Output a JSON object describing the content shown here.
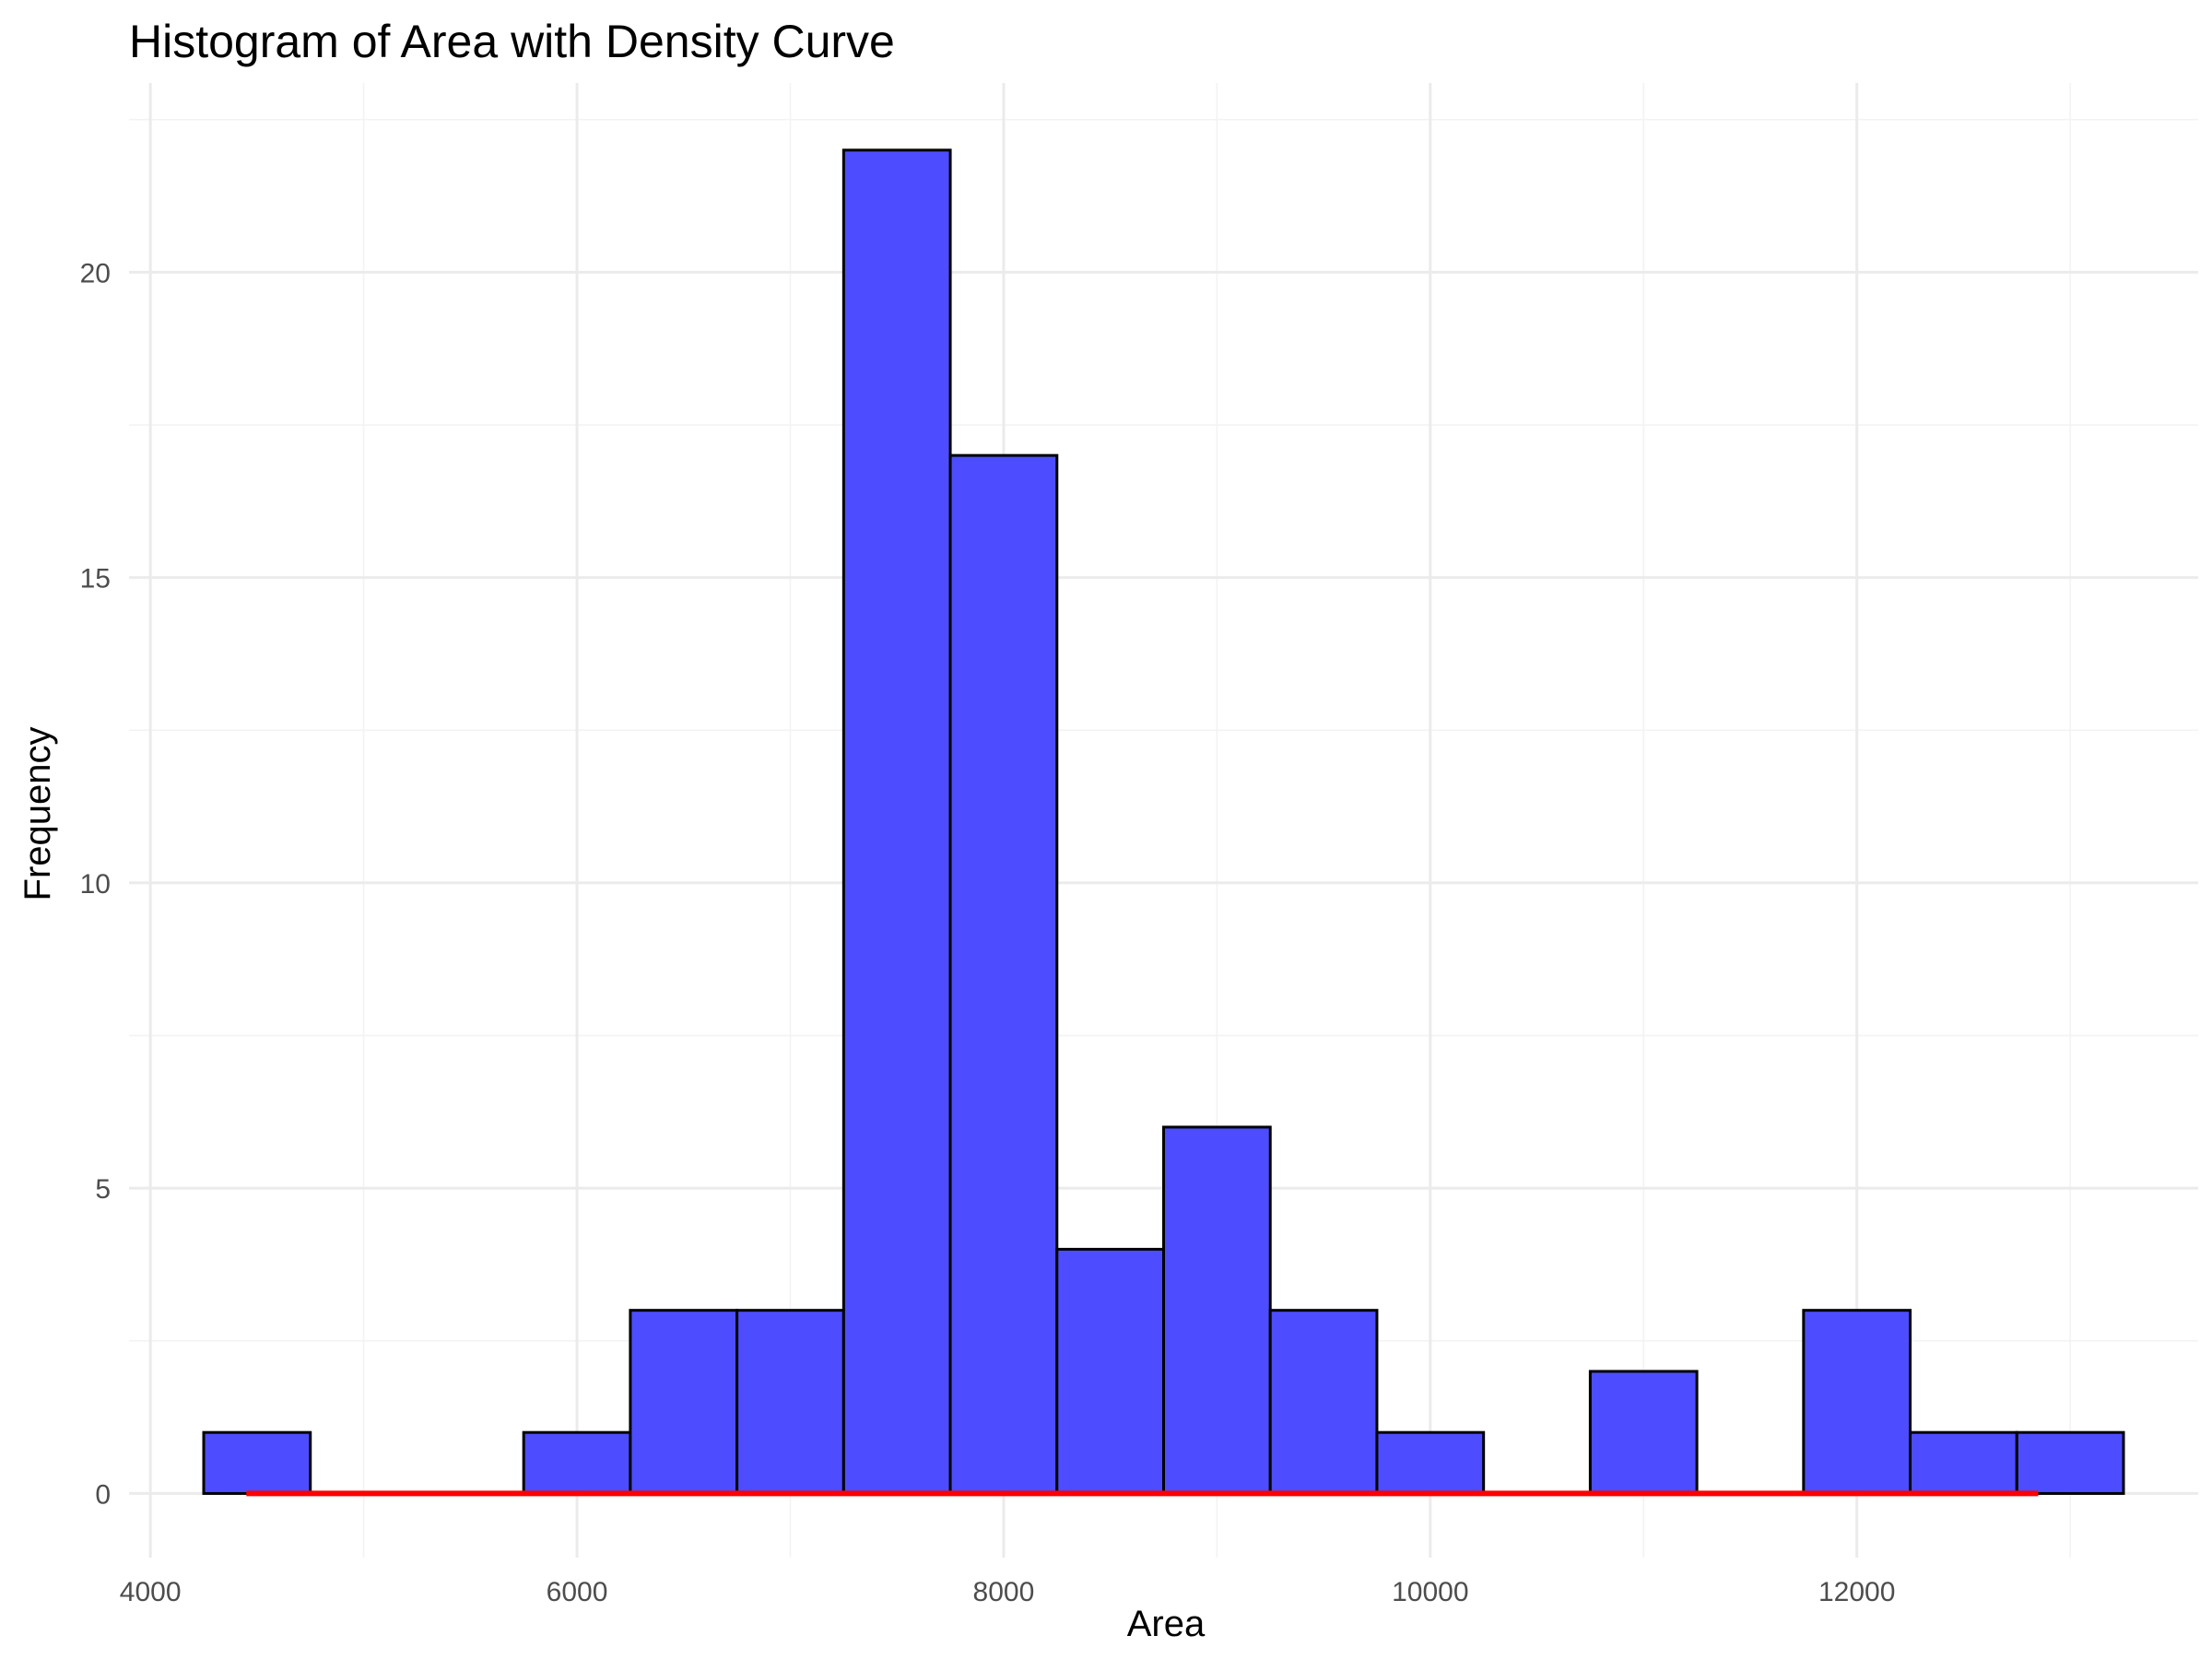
{
  "chart_data": {
    "type": "bar",
    "title": "Histogram of Area with Density Curve",
    "xlabel": "Area",
    "ylabel": "Frequency",
    "xlim": [
      3900,
      13600
    ],
    "ylim": [
      -1.05,
      23.1
    ],
    "x_ticks": [
      4000,
      6000,
      8000,
      10000,
      12000
    ],
    "y_ticks": [
      0,
      5,
      10,
      15,
      20
    ],
    "grid": true,
    "legend": "none",
    "bin_width": 500,
    "bins": [
      {
        "start": 4250,
        "end": 4750,
        "count": 1
      },
      {
        "start": 4750,
        "end": 5250,
        "count": 0
      },
      {
        "start": 5250,
        "end": 5750,
        "count": 0
      },
      {
        "start": 5750,
        "end": 6250,
        "count": 1
      },
      {
        "start": 6250,
        "end": 6750,
        "count": 3
      },
      {
        "start": 6750,
        "end": 7250,
        "count": 3
      },
      {
        "start": 7250,
        "end": 7750,
        "count": 22
      },
      {
        "start": 7750,
        "end": 8250,
        "count": 17
      },
      {
        "start": 8250,
        "end": 8750,
        "count": 4
      },
      {
        "start": 8750,
        "end": 9250,
        "count": 6
      },
      {
        "start": 9250,
        "end": 9750,
        "count": 3
      },
      {
        "start": 9750,
        "end": 10250,
        "count": 1
      },
      {
        "start": 10250,
        "end": 10750,
        "count": 0
      },
      {
        "start": 10750,
        "end": 11250,
        "count": 2
      },
      {
        "start": 11250,
        "end": 11750,
        "count": 0
      },
      {
        "start": 11750,
        "end": 12250,
        "count": 3
      },
      {
        "start": 12250,
        "end": 12750,
        "count": 1
      },
      {
        "start": 12750,
        "end": 13250,
        "count": 1
      }
    ],
    "density_curve": {
      "x_range": [
        4450,
        12850
      ],
      "y_value": 0
    },
    "colors": {
      "bar_fill": "#4d4dff",
      "bar_outline": "#000000",
      "density": "#ff0000"
    }
  }
}
